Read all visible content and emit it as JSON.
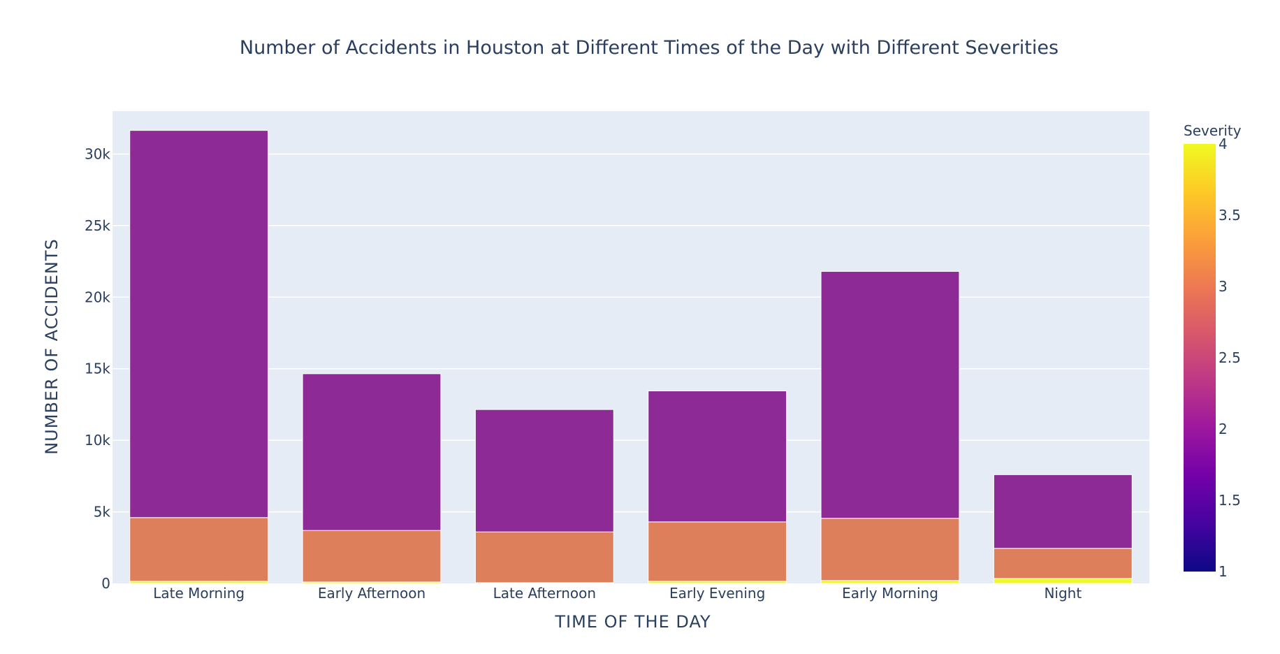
{
  "chart_data": {
    "type": "bar",
    "barmode": "stack",
    "title": "Number of Accidents in Houston at Different Times of the Day with Different Severities",
    "xlabel": "TIME OF THE DAY",
    "ylabel": "NUMBER OF ACCIDENTS",
    "categories": [
      "Late Morning",
      "Early Afternoon",
      "Late Afternoon",
      "Early Evening",
      "Early Morning",
      "Night"
    ],
    "ylim": [
      0,
      33000
    ],
    "yticks": [
      {
        "value": 0,
        "label": "0"
      },
      {
        "value": 5000,
        "label": "5k"
      },
      {
        "value": 10000,
        "label": "10k"
      },
      {
        "value": 15000,
        "label": "15k"
      },
      {
        "value": 20000,
        "label": "20k"
      },
      {
        "value": 25000,
        "label": "25k"
      },
      {
        "value": 30000,
        "label": "30k"
      }
    ],
    "grid": true,
    "series_order": [
      "4",
      "3",
      "2"
    ],
    "series": [
      {
        "severity": 4,
        "color": "#f0f921",
        "values": [
          150,
          100,
          50,
          150,
          200,
          350
        ]
      },
      {
        "severity": 3,
        "color": "#dd7f5b",
        "values": [
          4450,
          3600,
          3550,
          4150,
          4350,
          2100
        ]
      },
      {
        "severity": 2,
        "color": "#8d2a96",
        "values": [
          27050,
          10950,
          8550,
          9150,
          17250,
          5150
        ]
      }
    ],
    "colorbar": {
      "title": "Severity",
      "range": [
        1,
        4
      ],
      "placement": "right",
      "ticks": [
        "1",
        "1.5",
        "2",
        "2.5",
        "3",
        "3.5",
        "4"
      ],
      "colorscale": [
        "#0d0887",
        "#46039f",
        "#7201a8",
        "#9c179e",
        "#bd3786",
        "#d8576b",
        "#ed7953",
        "#fb9f3a",
        "#fdca26",
        "#f0f921"
      ]
    },
    "plot_bg": "#e5ecf6",
    "text_color": "#2a3f5f"
  }
}
